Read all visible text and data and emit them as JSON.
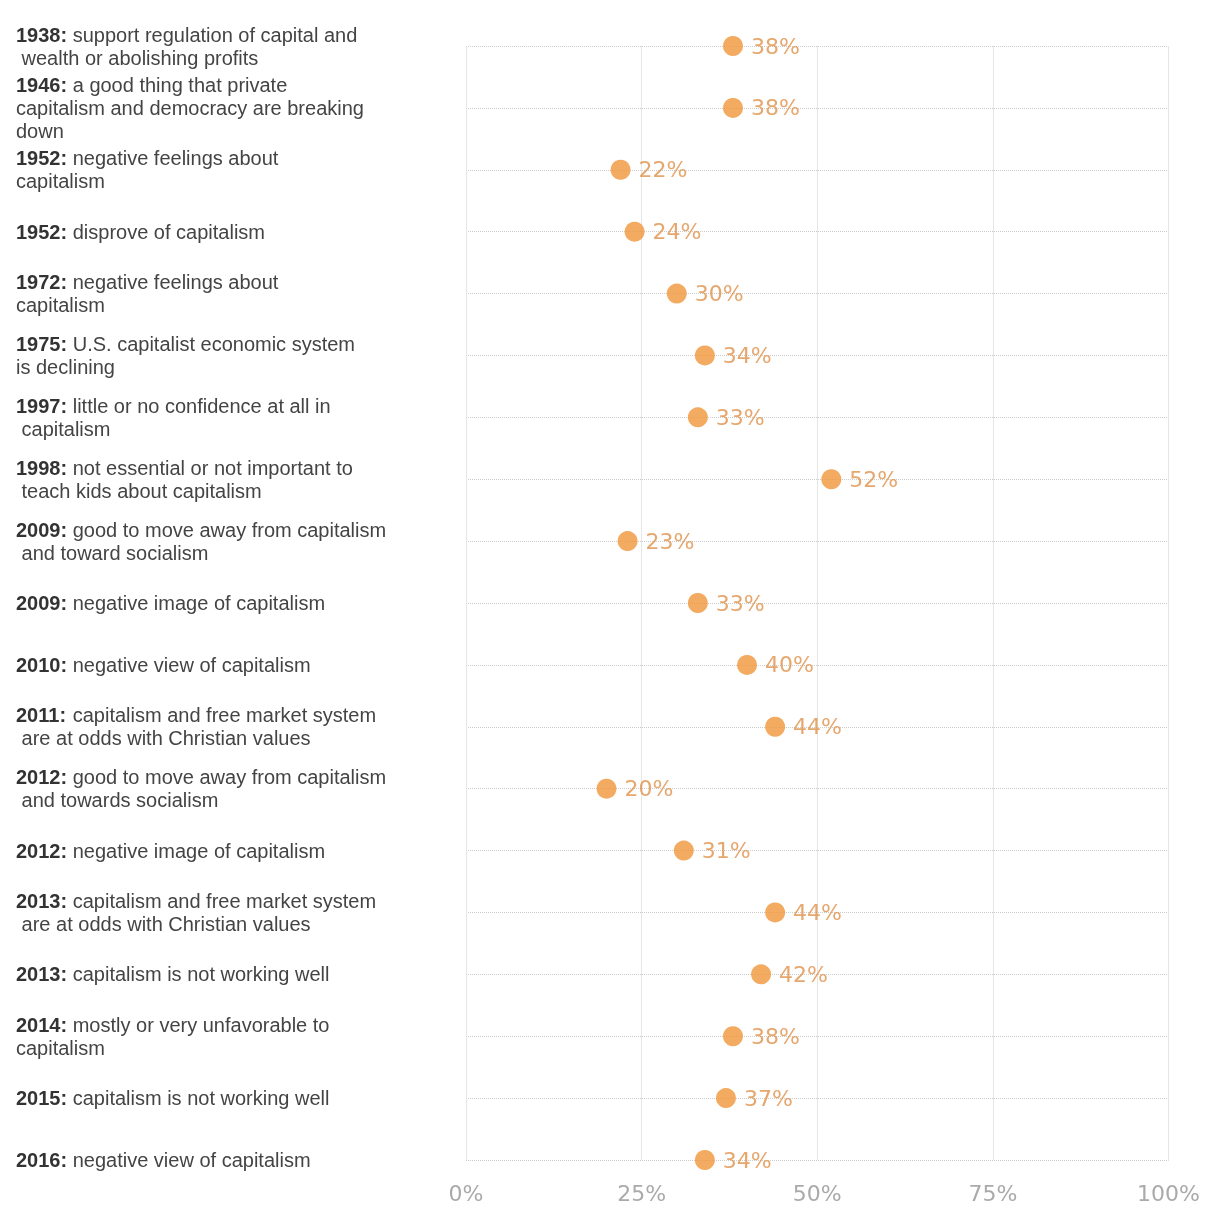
{
  "chart_data": {
    "type": "scatter",
    "orientation": "horizontal",
    "categories": [
      "1938: support regulation of capital and wealth or abolishing profits",
      "1946: a good thing that private capitalism and democracy are breaking down",
      "1952: negative feelings about capitalism",
      "1952: disprove of capitalism",
      "1972: negative feelings about capitalism",
      "1975: U.S. capitalist economic system is declining",
      "1997: little or no confidence at all in capitalism",
      "1998: not essential or not important to teach kids about capitalism",
      "2009: good to move away from capitalism and toward socialism",
      "2009: negative image of capitalism",
      "2010: negative view of capitalism",
      "2011: capitalism and free market system are at odds with Christian values",
      "2012: good to move away from capitalism and towards socialism",
      "2012: negative image of capitalism",
      "2013: capitalism and free market system are at odds with Christian values",
      "2013: capitalism is not working well",
      "2014: mostly or very unfavorable to capitalism",
      "2015: capitalism is not working well",
      "2016: negative view of capitalism"
    ],
    "values": [
      38,
      38,
      22,
      24,
      30,
      34,
      33,
      52,
      23,
      33,
      40,
      44,
      20,
      31,
      44,
      42,
      38,
      37,
      34
    ],
    "value_labels": [
      "38%",
      "38%",
      "22%",
      "24%",
      "30%",
      "34%",
      "33%",
      "52%",
      "23%",
      "33%",
      "40%",
      "44%",
      "20%",
      "31%",
      "44%",
      "42%",
      "38%",
      "37%",
      "34%"
    ],
    "color": "#f0953a",
    "marker": "circle",
    "grid": true,
    "xlim": [
      0,
      100
    ],
    "xticks": [
      {
        "value": 0,
        "label": "0%"
      },
      {
        "value": 25,
        "label": "25%"
      },
      {
        "value": 50,
        "label": "50%"
      },
      {
        "value": 75,
        "label": "75%"
      },
      {
        "value": 100,
        "label": "100%"
      }
    ]
  }
}
